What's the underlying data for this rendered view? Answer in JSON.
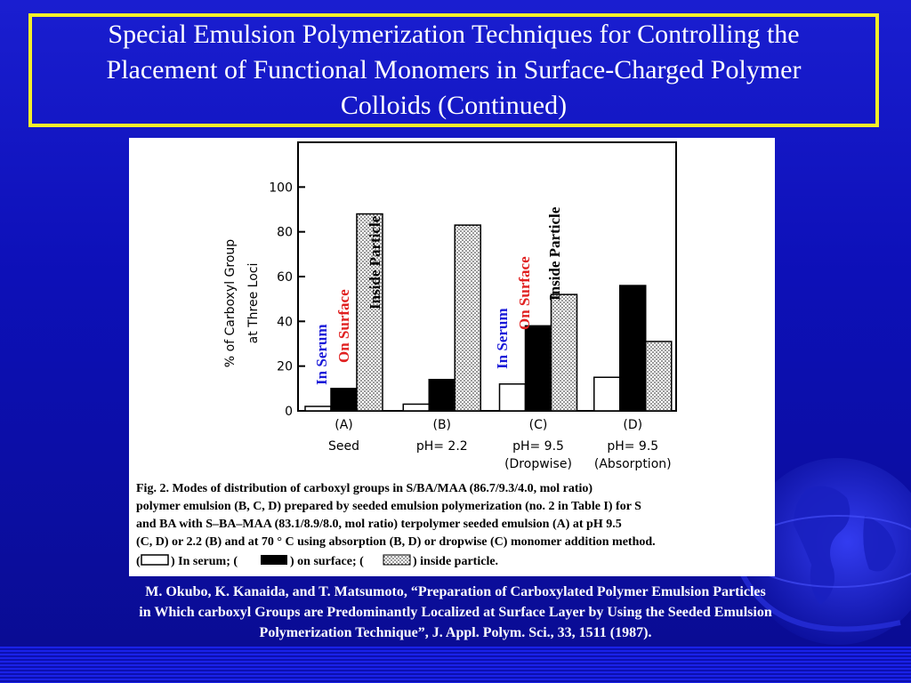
{
  "slide": {
    "title_line1": "Special Emulsion Polymerization Techniques for Controlling the",
    "title_line2": "Placement of Functional Monomers in Surface-Charged Polymer",
    "title_line3": "Colloids (Continued)",
    "citation_line1": "M. Okubo, K. Kanaida, and T. Matsumoto, “Preparation of Carboxylated Polymer Emulsion Particles",
    "citation_line2": "in Which carboxyl Groups are Predominantly Localized at Surface Layer by Using the Seeded Emulsion",
    "citation_line3": "Polymerization Technique”, J. Appl. Polym. Sci., 33, 1511 (1987).",
    "colors": {
      "title_border": "#f5ef2a",
      "in_serum_label": "#1a1ad8",
      "on_surface_label": "#e02020",
      "inside_particle_label": "#000000"
    }
  },
  "annotations": {
    "in_serum": "In Serum",
    "on_surface": "On Surface",
    "inside_particle": "Inside Particle"
  },
  "caption": {
    "line1": "Fig. 2.   Modes of distribution of carboxyl groups in S/BA/MAA (86.7/9.3/4.0, mol ratio)",
    "line2": "polymer emulsion (B, C, D) prepared by seeded emulsion polymerization (no. 2 in Table I) for S",
    "line3": "and BA with S–BA–MAA (83.1/8.9/8.0, mol ratio) terpolymer seeded emulsion (A) at pH 9.5",
    "line4": "(C, D) or 2.2 (B) and at 70 ° C using absorption (B, D) or dropwise (C) monomer addition method.",
    "legend_open": "(",
    "legend_in_serum": ") In serum; (",
    "legend_on_surface": ") on surface; (",
    "legend_inside": ") inside particle."
  },
  "chart_data": {
    "type": "bar",
    "ylabel_line1": "% of Carboxyl Group",
    "ylabel_line2": "at Three Loci",
    "ylim": [
      0,
      120
    ],
    "yticks": [
      0,
      20,
      40,
      60,
      80,
      100
    ],
    "grid": false,
    "categories": [
      {
        "id": "(A)",
        "sub1": "Seed",
        "sub2": ""
      },
      {
        "id": "(B)",
        "sub1": "pH= 2.2",
        "sub2": ""
      },
      {
        "id": "(C)",
        "sub1": "pH= 9.5",
        "sub2": "(Dropwise)"
      },
      {
        "id": "(D)",
        "sub1": "pH= 9.5",
        "sub2": "(Absorption)"
      }
    ],
    "series": [
      {
        "name": "In serum",
        "values": [
          2,
          3,
          12,
          15
        ],
        "fill": "#ffffff"
      },
      {
        "name": "on surface",
        "values": [
          10,
          14,
          38,
          56
        ],
        "fill": "#000000"
      },
      {
        "name": "inside particle",
        "values": [
          88,
          83,
          52,
          31
        ],
        "fill": "dots"
      }
    ]
  }
}
